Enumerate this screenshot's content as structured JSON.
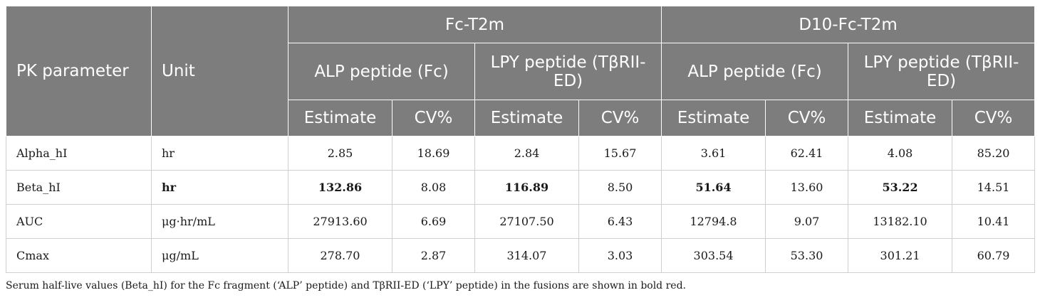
{
  "header": {
    "pk_parameter": "PK parameter",
    "unit": "Unit",
    "groups": [
      "Fc-T2m",
      "D10-Fc-T2m"
    ],
    "peptides": [
      "ALP peptide (Fc)",
      "LPY peptide (TβRII-ED)",
      "ALP peptide (Fc)",
      "LPY peptide (TβRII-ED)"
    ],
    "stats": [
      "Estimate",
      "CV%",
      "Estimate",
      "CV%",
      "Estimate",
      "CV%",
      "Estimate",
      "CV%"
    ]
  },
  "rows": [
    {
      "param": "Alpha_hI",
      "unit": "hr",
      "values": [
        "2.85",
        "18.69",
        "2.84",
        "15.67",
        "3.61",
        "62.41",
        "4.08",
        "85.20"
      ]
    },
    {
      "param": "Beta_hI",
      "unit": "hr",
      "values": [
        "132.86",
        "8.08",
        "116.89",
        "8.50",
        "51.64",
        "13.60",
        "53.22",
        "14.51"
      ]
    },
    {
      "param": "AUC",
      "unit": "μg·hr/mL",
      "values": [
        "27913.60",
        "6.69",
        "27107.50",
        "6.43",
        "12794.8",
        "9.07",
        "13182.10",
        "10.41"
      ]
    },
    {
      "param": "Cmax",
      "unit": "μg/mL",
      "values": [
        "278.70",
        "2.87",
        "314.07",
        "3.03",
        "303.54",
        "53.30",
        "301.21",
        "60.79"
      ]
    }
  ],
  "caption": "Serum half-live values (Beta_hI) for the Fc fragment (‘ALP’ peptide) and TβRII-ED (‘LPY’ peptide) in the fusions are shown in bold red."
}
